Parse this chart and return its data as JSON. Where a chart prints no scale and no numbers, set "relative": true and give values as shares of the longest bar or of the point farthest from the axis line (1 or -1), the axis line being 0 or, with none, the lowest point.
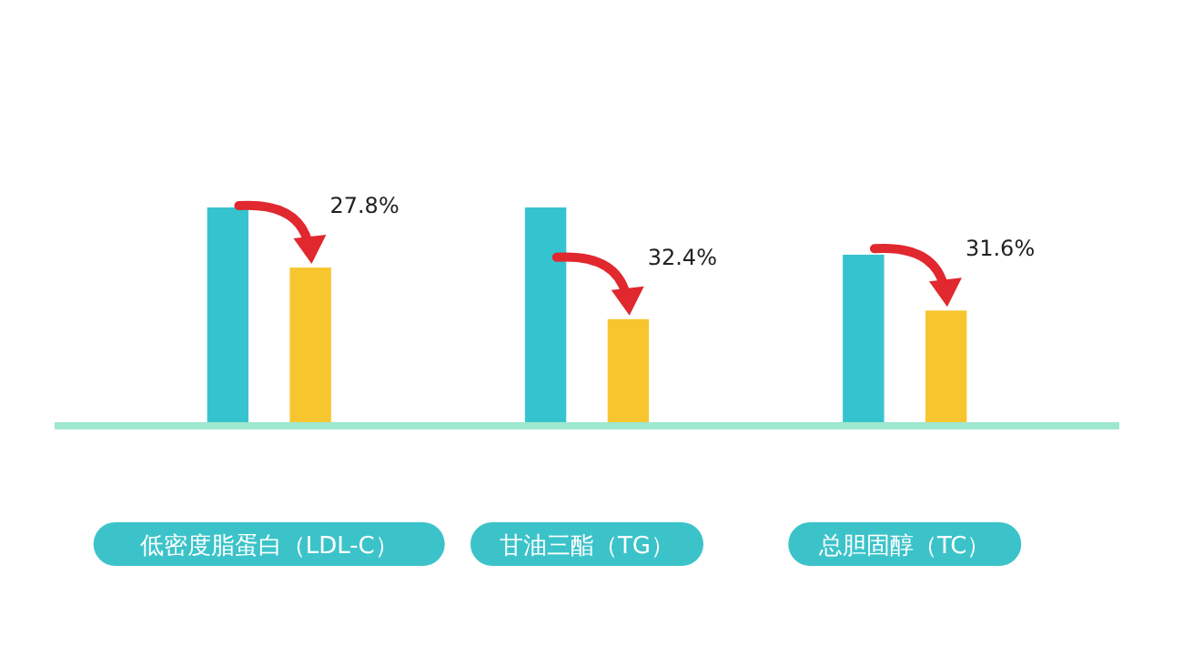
{
  "chart_data": {
    "type": "bar",
    "relative": true,
    "categories": [
      "低密度脂蛋白（LDL-C）",
      "甘油三酯（TG）",
      "总胆固醇（TC）"
    ],
    "series": [
      {
        "color": "#35c4cf",
        "values": [
          1,
          1,
          0.78
        ]
      },
      {
        "color": "#f7c52e",
        "values": [
          0.72,
          0.48,
          0.52
        ]
      }
    ],
    "annotations": [
      "27.8%",
      "32.4%",
      "31.6%"
    ]
  }
}
